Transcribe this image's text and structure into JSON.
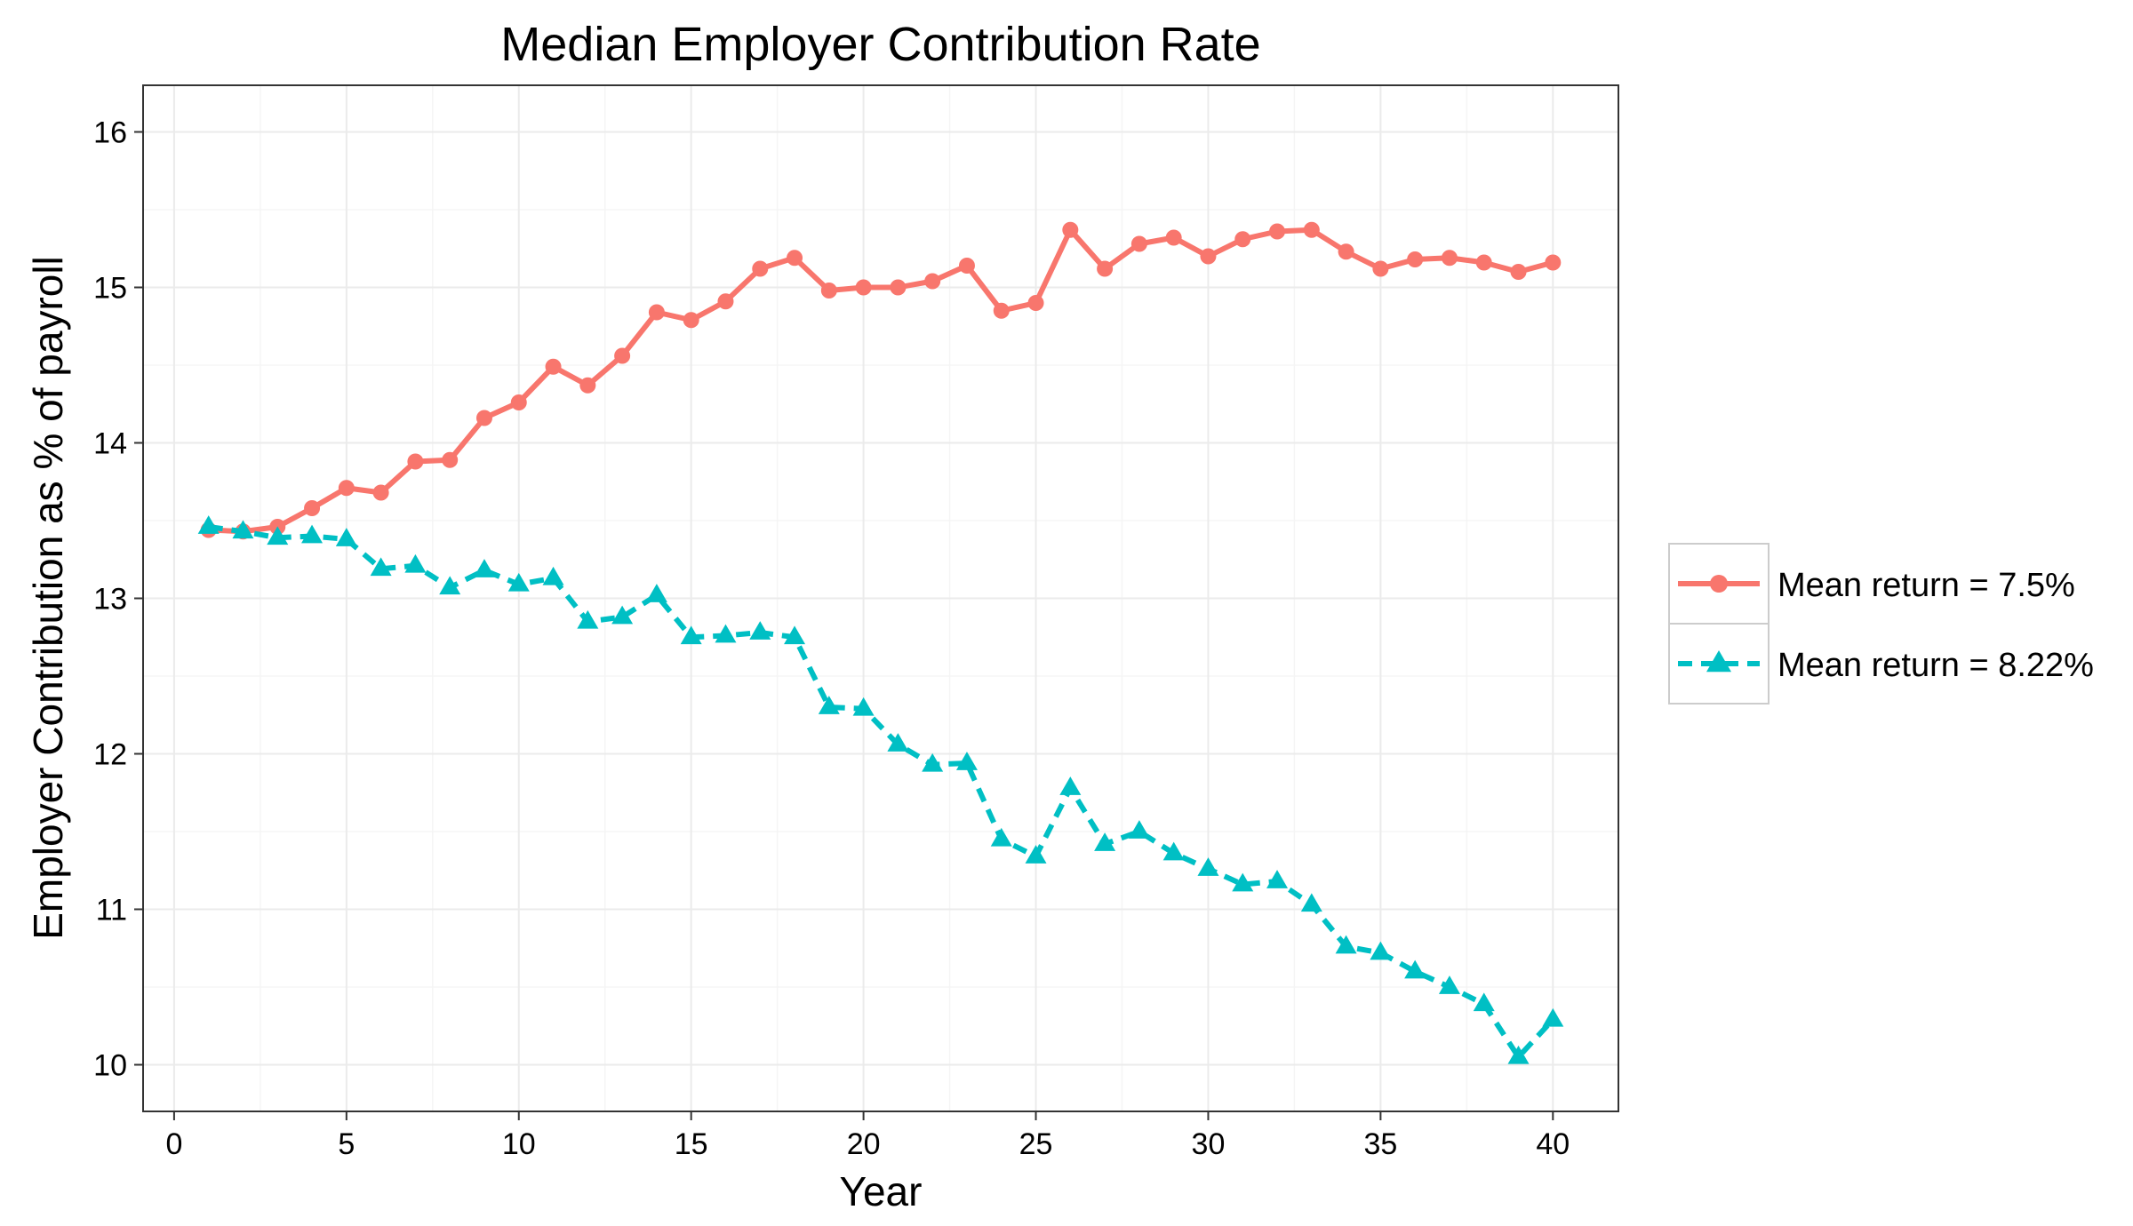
{
  "chart_data": {
    "type": "line",
    "title": "Median Employer Contribution Rate",
    "xlabel": "Year",
    "ylabel": "Employer Contribution as % of payroll",
    "xlim": [
      -0.9,
      41.9
    ],
    "ylim": [
      9.7,
      16.3
    ],
    "x_ticks": [
      "0",
      "5",
      "10",
      "15",
      "20",
      "25",
      "30",
      "35",
      "40"
    ],
    "y_ticks": [
      "10",
      "11",
      "12",
      "13",
      "14",
      "15",
      "16"
    ],
    "grid": true,
    "legend_position": "right",
    "x": [
      1,
      2,
      3,
      4,
      5,
      6,
      7,
      8,
      9,
      10,
      11,
      12,
      13,
      14,
      15,
      16,
      17,
      18,
      19,
      20,
      21,
      22,
      23,
      24,
      25,
      26,
      27,
      28,
      29,
      30,
      31,
      32,
      33,
      34,
      35,
      36,
      37,
      38,
      39,
      40
    ],
    "series": [
      {
        "name": "Mean return = 7.5%",
        "color": "#F8766D",
        "marker": "circle",
        "linestyle": "solid",
        "values": [
          13.44,
          13.43,
          13.46,
          13.58,
          13.71,
          13.68,
          13.88,
          13.89,
          14.16,
          14.26,
          14.49,
          14.37,
          14.56,
          14.84,
          14.79,
          14.91,
          15.12,
          15.19,
          14.98,
          15.0,
          15.0,
          15.04,
          15.14,
          14.85,
          14.9,
          15.37,
          15.12,
          15.28,
          15.32,
          15.2,
          15.31,
          15.36,
          15.37,
          15.23,
          15.12,
          15.18,
          15.19,
          15.16,
          15.1,
          15.16
        ]
      },
      {
        "name": "Mean return = 8.22%",
        "color": "#00BFC4",
        "marker": "triangle",
        "linestyle": "dashed",
        "values": [
          13.46,
          13.43,
          13.39,
          13.4,
          13.38,
          13.19,
          13.21,
          13.07,
          13.18,
          13.09,
          13.13,
          12.85,
          12.88,
          13.02,
          12.75,
          12.76,
          12.78,
          12.75,
          12.3,
          12.29,
          12.06,
          11.93,
          11.94,
          11.45,
          11.34,
          11.78,
          11.42,
          11.5,
          11.36,
          11.26,
          11.16,
          11.18,
          11.03,
          10.76,
          10.72,
          10.6,
          10.5,
          10.39,
          10.05,
          10.29
        ]
      }
    ]
  }
}
